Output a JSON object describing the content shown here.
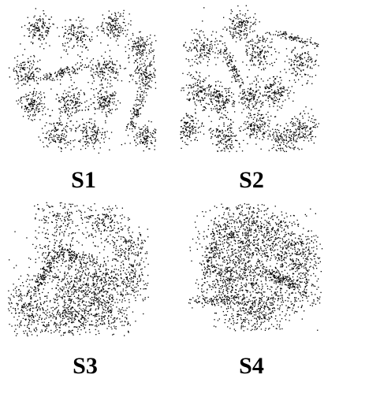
{
  "labels": {
    "s1": "S1",
    "s2": "S2",
    "s3": "S3",
    "s4": "S4"
  },
  "colors": {
    "point": "#000000",
    "background": "#ffffff"
  },
  "chart_data": [
    {
      "type": "scatter",
      "title": "S1",
      "xlim": [
        0,
        1
      ],
      "ylim": [
        0,
        1
      ],
      "grid": false,
      "axes": "hidden",
      "clusters": [
        {
          "cx": 0.22,
          "cy": 0.84,
          "spread": 0.05,
          "n": 140
        },
        {
          "cx": 0.46,
          "cy": 0.79,
          "spread": 0.05,
          "n": 140
        },
        {
          "cx": 0.72,
          "cy": 0.86,
          "spread": 0.05,
          "n": 140
        },
        {
          "cx": 0.89,
          "cy": 0.72,
          "spread": 0.045,
          "n": 130
        },
        {
          "cx": 0.13,
          "cy": 0.55,
          "spread": 0.055,
          "n": 140
        },
        {
          "cx": 0.39,
          "cy": 0.55,
          "spread": 0.03,
          "n": 120,
          "angle": 15,
          "elong": 3.0
        },
        {
          "cx": 0.66,
          "cy": 0.56,
          "spread": 0.05,
          "n": 140
        },
        {
          "cx": 0.93,
          "cy": 0.53,
          "spread": 0.05,
          "n": 140
        },
        {
          "cx": 0.17,
          "cy": 0.33,
          "spread": 0.05,
          "n": 140
        },
        {
          "cx": 0.43,
          "cy": 0.35,
          "spread": 0.05,
          "n": 140
        },
        {
          "cx": 0.66,
          "cy": 0.35,
          "spread": 0.05,
          "n": 140
        },
        {
          "cx": 0.87,
          "cy": 0.3,
          "spread": 0.025,
          "n": 110,
          "angle": 70,
          "elong": 4.0
        },
        {
          "cx": 0.34,
          "cy": 0.13,
          "spread": 0.055,
          "n": 140
        },
        {
          "cx": 0.56,
          "cy": 0.13,
          "spread": 0.05,
          "n": 140
        },
        {
          "cx": 0.93,
          "cy": 0.11,
          "spread": 0.045,
          "n": 120
        }
      ]
    },
    {
      "type": "scatter",
      "title": "S2",
      "xlim": [
        0,
        1
      ],
      "ylim": [
        0,
        1
      ],
      "grid": false,
      "axes": "hidden",
      "clusters": [
        {
          "cx": 0.44,
          "cy": 0.85,
          "spread": 0.055,
          "n": 150
        },
        {
          "cx": 0.84,
          "cy": 0.77,
          "spread": 0.022,
          "n": 90,
          "angle": -15,
          "elong": 4.0
        },
        {
          "cx": 0.16,
          "cy": 0.7,
          "spread": 0.06,
          "n": 150
        },
        {
          "cx": 0.57,
          "cy": 0.68,
          "spread": 0.06,
          "n": 150
        },
        {
          "cx": 0.87,
          "cy": 0.6,
          "spread": 0.055,
          "n": 140
        },
        {
          "cx": 0.37,
          "cy": 0.59,
          "spread": 0.025,
          "n": 110,
          "angle": -65,
          "elong": 4.0
        },
        {
          "cx": 0.13,
          "cy": 0.41,
          "spread": 0.06,
          "n": 150
        },
        {
          "cx": 0.29,
          "cy": 0.34,
          "spread": 0.055,
          "n": 150
        },
        {
          "cx": 0.51,
          "cy": 0.38,
          "spread": 0.06,
          "n": 150
        },
        {
          "cx": 0.68,
          "cy": 0.41,
          "spread": 0.055,
          "n": 150
        },
        {
          "cx": 0.05,
          "cy": 0.16,
          "spread": 0.055,
          "n": 140
        },
        {
          "cx": 0.32,
          "cy": 0.1,
          "spread": 0.06,
          "n": 150
        },
        {
          "cx": 0.56,
          "cy": 0.17,
          "spread": 0.055,
          "n": 140
        },
        {
          "cx": 0.74,
          "cy": 0.08,
          "spread": 0.055,
          "n": 140
        },
        {
          "cx": 0.88,
          "cy": 0.16,
          "spread": 0.055,
          "n": 140
        }
      ]
    },
    {
      "type": "scatter",
      "title": "S3",
      "xlim": [
        0,
        1
      ],
      "ylim": [
        0,
        1
      ],
      "grid": false,
      "axes": "hidden",
      "clusters": [
        {
          "cx": 0.36,
          "cy": 0.88,
          "spread": 0.09,
          "n": 170
        },
        {
          "cx": 0.68,
          "cy": 0.84,
          "spread": 0.085,
          "n": 170
        },
        {
          "cx": 0.34,
          "cy": 0.62,
          "spread": 0.09,
          "n": 170
        },
        {
          "cx": 0.49,
          "cy": 0.6,
          "spread": 0.04,
          "n": 110,
          "angle": -20,
          "elong": 2.5
        },
        {
          "cx": 0.86,
          "cy": 0.65,
          "spread": 0.085,
          "n": 170
        },
        {
          "cx": 0.25,
          "cy": 0.45,
          "spread": 0.03,
          "n": 110,
          "angle": 60,
          "elong": 3.0
        },
        {
          "cx": 0.45,
          "cy": 0.4,
          "spread": 0.09,
          "n": 170
        },
        {
          "cx": 0.63,
          "cy": 0.43,
          "spread": 0.085,
          "n": 170
        },
        {
          "cx": 0.86,
          "cy": 0.4,
          "spread": 0.085,
          "n": 170
        },
        {
          "cx": 0.11,
          "cy": 0.28,
          "spread": 0.09,
          "n": 170
        },
        {
          "cx": 0.45,
          "cy": 0.22,
          "spread": 0.085,
          "n": 170
        },
        {
          "cx": 0.18,
          "cy": 0.13,
          "spread": 0.085,
          "n": 160
        },
        {
          "cx": 0.43,
          "cy": 0.1,
          "spread": 0.085,
          "n": 160
        },
        {
          "cx": 0.71,
          "cy": 0.14,
          "spread": 0.085,
          "n": 160
        },
        {
          "cx": 0.66,
          "cy": 0.3,
          "spread": 0.08,
          "n": 150
        }
      ]
    },
    {
      "type": "scatter",
      "title": "S4",
      "xlim": [
        0,
        1
      ],
      "ylim": [
        0,
        1
      ],
      "grid": false,
      "axes": "hidden",
      "clusters": [
        {
          "cx": 0.38,
          "cy": 0.86,
          "spread": 0.12,
          "n": 200
        },
        {
          "cx": 0.6,
          "cy": 0.82,
          "spread": 0.12,
          "n": 200
        },
        {
          "cx": 0.27,
          "cy": 0.7,
          "spread": 0.12,
          "n": 200
        },
        {
          "cx": 0.5,
          "cy": 0.64,
          "spread": 0.11,
          "n": 200
        },
        {
          "cx": 0.75,
          "cy": 0.67,
          "spread": 0.12,
          "n": 200
        },
        {
          "cx": 0.17,
          "cy": 0.58,
          "spread": 0.035,
          "n": 110,
          "angle": 75,
          "elong": 3.5
        },
        {
          "cx": 0.4,
          "cy": 0.44,
          "spread": 0.11,
          "n": 200
        },
        {
          "cx": 0.67,
          "cy": 0.42,
          "spread": 0.035,
          "n": 110,
          "angle": -25,
          "elong": 3.0
        },
        {
          "cx": 0.84,
          "cy": 0.55,
          "spread": 0.11,
          "n": 180
        },
        {
          "cx": 0.15,
          "cy": 0.24,
          "spread": 0.03,
          "n": 100,
          "angle": 5,
          "elong": 4.0
        },
        {
          "cx": 0.36,
          "cy": 0.23,
          "spread": 0.11,
          "n": 190
        },
        {
          "cx": 0.61,
          "cy": 0.24,
          "spread": 0.11,
          "n": 190
        },
        {
          "cx": 0.8,
          "cy": 0.33,
          "spread": 0.11,
          "n": 180
        },
        {
          "cx": 0.5,
          "cy": 0.1,
          "spread": 0.1,
          "n": 170
        },
        {
          "cx": 0.26,
          "cy": 0.44,
          "spread": 0.1,
          "n": 170
        }
      ]
    }
  ]
}
